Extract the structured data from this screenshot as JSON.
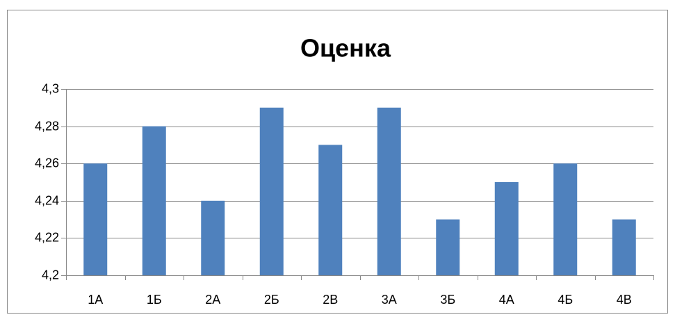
{
  "chart_data": {
    "type": "bar",
    "title": "Оценка",
    "categories": [
      "1А",
      "1Б",
      "2А",
      "2Б",
      "2В",
      "3А",
      "3Б",
      "4А",
      "4Б",
      "4В"
    ],
    "values": [
      4.26,
      4.28,
      4.24,
      4.29,
      4.27,
      4.29,
      4.23,
      4.25,
      4.26,
      4.23
    ],
    "color": "#4f81bd",
    "ylim": [
      4.2,
      4.3
    ],
    "yticks": [
      {
        "value": 4.2,
        "label": "4,2"
      },
      {
        "value": 4.22,
        "label": "4,22"
      },
      {
        "value": 4.24,
        "label": "4,24"
      },
      {
        "value": 4.26,
        "label": "4,26"
      },
      {
        "value": 4.28,
        "label": "4,28"
      },
      {
        "value": 4.3,
        "label": "4,3"
      }
    ],
    "grid": true
  }
}
